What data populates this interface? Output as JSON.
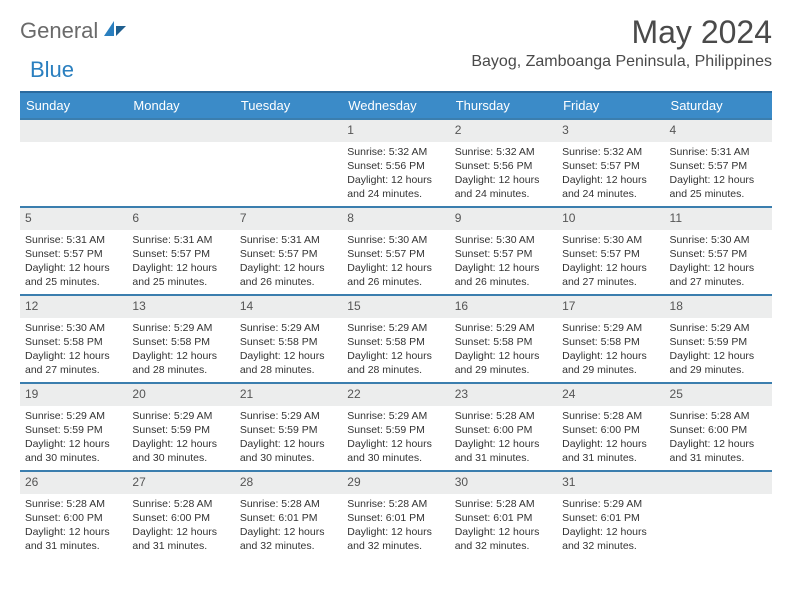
{
  "brand": {
    "part1": "General",
    "part2": "Blue"
  },
  "title": "May 2024",
  "location": "Bayog, Zamboanga Peninsula, Philippines",
  "colors": {
    "header_bg": "#3b8bc8",
    "header_border": "#2a6a9e",
    "row_border": "#3b7eae",
    "daynum_bg": "#eceded",
    "brand_gray": "#6a6a6a",
    "brand_blue": "#2a7fbf",
    "text": "#333333"
  },
  "fonts": {
    "title_size": 32,
    "location_size": 16,
    "weekday_size": 13,
    "daynum_size": 12,
    "body_size": 10.5
  },
  "weekdays": [
    "Sunday",
    "Monday",
    "Tuesday",
    "Wednesday",
    "Thursday",
    "Friday",
    "Saturday"
  ],
  "weeks": [
    [
      null,
      null,
      null,
      {
        "n": "1",
        "sr": "Sunrise: 5:32 AM",
        "ss": "Sunset: 5:56 PM",
        "d1": "Daylight: 12 hours",
        "d2": "and 24 minutes."
      },
      {
        "n": "2",
        "sr": "Sunrise: 5:32 AM",
        "ss": "Sunset: 5:56 PM",
        "d1": "Daylight: 12 hours",
        "d2": "and 24 minutes."
      },
      {
        "n": "3",
        "sr": "Sunrise: 5:32 AM",
        "ss": "Sunset: 5:57 PM",
        "d1": "Daylight: 12 hours",
        "d2": "and 24 minutes."
      },
      {
        "n": "4",
        "sr": "Sunrise: 5:31 AM",
        "ss": "Sunset: 5:57 PM",
        "d1": "Daylight: 12 hours",
        "d2": "and 25 minutes."
      }
    ],
    [
      {
        "n": "5",
        "sr": "Sunrise: 5:31 AM",
        "ss": "Sunset: 5:57 PM",
        "d1": "Daylight: 12 hours",
        "d2": "and 25 minutes."
      },
      {
        "n": "6",
        "sr": "Sunrise: 5:31 AM",
        "ss": "Sunset: 5:57 PM",
        "d1": "Daylight: 12 hours",
        "d2": "and 25 minutes."
      },
      {
        "n": "7",
        "sr": "Sunrise: 5:31 AM",
        "ss": "Sunset: 5:57 PM",
        "d1": "Daylight: 12 hours",
        "d2": "and 26 minutes."
      },
      {
        "n": "8",
        "sr": "Sunrise: 5:30 AM",
        "ss": "Sunset: 5:57 PM",
        "d1": "Daylight: 12 hours",
        "d2": "and 26 minutes."
      },
      {
        "n": "9",
        "sr": "Sunrise: 5:30 AM",
        "ss": "Sunset: 5:57 PM",
        "d1": "Daylight: 12 hours",
        "d2": "and 26 minutes."
      },
      {
        "n": "10",
        "sr": "Sunrise: 5:30 AM",
        "ss": "Sunset: 5:57 PM",
        "d1": "Daylight: 12 hours",
        "d2": "and 27 minutes."
      },
      {
        "n": "11",
        "sr": "Sunrise: 5:30 AM",
        "ss": "Sunset: 5:57 PM",
        "d1": "Daylight: 12 hours",
        "d2": "and 27 minutes."
      }
    ],
    [
      {
        "n": "12",
        "sr": "Sunrise: 5:30 AM",
        "ss": "Sunset: 5:58 PM",
        "d1": "Daylight: 12 hours",
        "d2": "and 27 minutes."
      },
      {
        "n": "13",
        "sr": "Sunrise: 5:29 AM",
        "ss": "Sunset: 5:58 PM",
        "d1": "Daylight: 12 hours",
        "d2": "and 28 minutes."
      },
      {
        "n": "14",
        "sr": "Sunrise: 5:29 AM",
        "ss": "Sunset: 5:58 PM",
        "d1": "Daylight: 12 hours",
        "d2": "and 28 minutes."
      },
      {
        "n": "15",
        "sr": "Sunrise: 5:29 AM",
        "ss": "Sunset: 5:58 PM",
        "d1": "Daylight: 12 hours",
        "d2": "and 28 minutes."
      },
      {
        "n": "16",
        "sr": "Sunrise: 5:29 AM",
        "ss": "Sunset: 5:58 PM",
        "d1": "Daylight: 12 hours",
        "d2": "and 29 minutes."
      },
      {
        "n": "17",
        "sr": "Sunrise: 5:29 AM",
        "ss": "Sunset: 5:58 PM",
        "d1": "Daylight: 12 hours",
        "d2": "and 29 minutes."
      },
      {
        "n": "18",
        "sr": "Sunrise: 5:29 AM",
        "ss": "Sunset: 5:59 PM",
        "d1": "Daylight: 12 hours",
        "d2": "and 29 minutes."
      }
    ],
    [
      {
        "n": "19",
        "sr": "Sunrise: 5:29 AM",
        "ss": "Sunset: 5:59 PM",
        "d1": "Daylight: 12 hours",
        "d2": "and 30 minutes."
      },
      {
        "n": "20",
        "sr": "Sunrise: 5:29 AM",
        "ss": "Sunset: 5:59 PM",
        "d1": "Daylight: 12 hours",
        "d2": "and 30 minutes."
      },
      {
        "n": "21",
        "sr": "Sunrise: 5:29 AM",
        "ss": "Sunset: 5:59 PM",
        "d1": "Daylight: 12 hours",
        "d2": "and 30 minutes."
      },
      {
        "n": "22",
        "sr": "Sunrise: 5:29 AM",
        "ss": "Sunset: 5:59 PM",
        "d1": "Daylight: 12 hours",
        "d2": "and 30 minutes."
      },
      {
        "n": "23",
        "sr": "Sunrise: 5:28 AM",
        "ss": "Sunset: 6:00 PM",
        "d1": "Daylight: 12 hours",
        "d2": "and 31 minutes."
      },
      {
        "n": "24",
        "sr": "Sunrise: 5:28 AM",
        "ss": "Sunset: 6:00 PM",
        "d1": "Daylight: 12 hours",
        "d2": "and 31 minutes."
      },
      {
        "n": "25",
        "sr": "Sunrise: 5:28 AM",
        "ss": "Sunset: 6:00 PM",
        "d1": "Daylight: 12 hours",
        "d2": "and 31 minutes."
      }
    ],
    [
      {
        "n": "26",
        "sr": "Sunrise: 5:28 AM",
        "ss": "Sunset: 6:00 PM",
        "d1": "Daylight: 12 hours",
        "d2": "and 31 minutes."
      },
      {
        "n": "27",
        "sr": "Sunrise: 5:28 AM",
        "ss": "Sunset: 6:00 PM",
        "d1": "Daylight: 12 hours",
        "d2": "and 31 minutes."
      },
      {
        "n": "28",
        "sr": "Sunrise: 5:28 AM",
        "ss": "Sunset: 6:01 PM",
        "d1": "Daylight: 12 hours",
        "d2": "and 32 minutes."
      },
      {
        "n": "29",
        "sr": "Sunrise: 5:28 AM",
        "ss": "Sunset: 6:01 PM",
        "d1": "Daylight: 12 hours",
        "d2": "and 32 minutes."
      },
      {
        "n": "30",
        "sr": "Sunrise: 5:28 AM",
        "ss": "Sunset: 6:01 PM",
        "d1": "Daylight: 12 hours",
        "d2": "and 32 minutes."
      },
      {
        "n": "31",
        "sr": "Sunrise: 5:29 AM",
        "ss": "Sunset: 6:01 PM",
        "d1": "Daylight: 12 hours",
        "d2": "and 32 minutes."
      },
      null
    ]
  ]
}
